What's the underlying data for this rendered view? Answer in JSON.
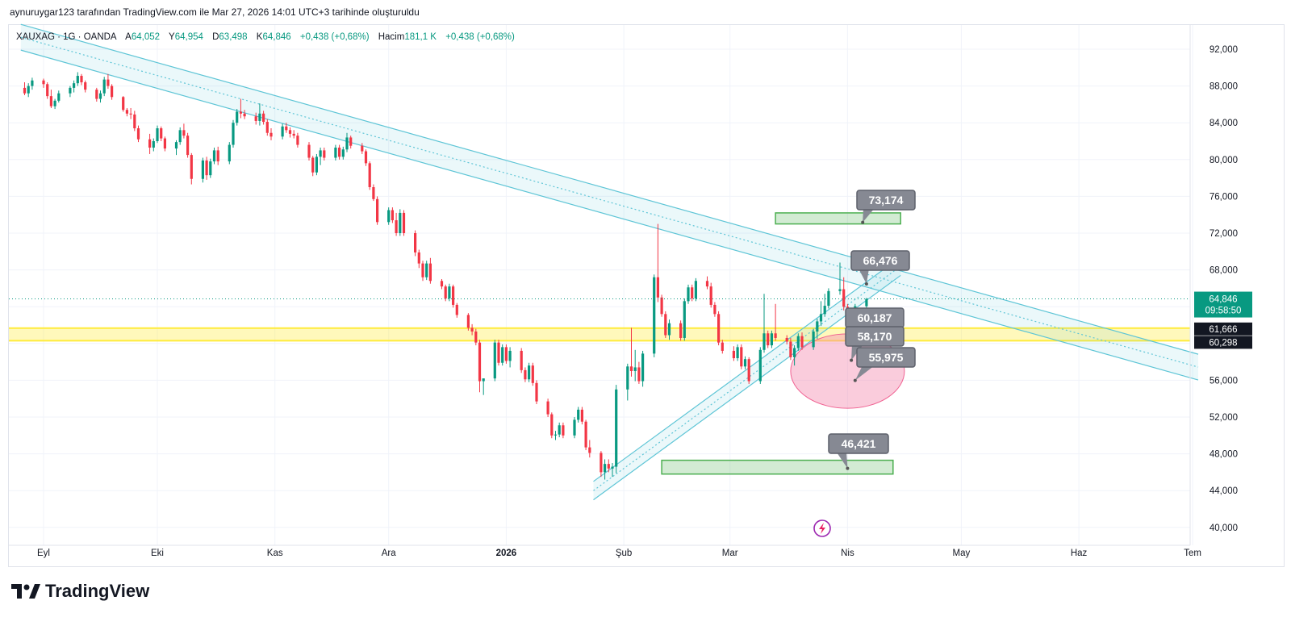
{
  "caption": "aynuruygar123 tarafından TradingView.com ile Mar 27, 2026 14:01 UTC+3 tarihinde oluşturuldu",
  "legend": {
    "symbol": "XAUXAG · 1G · OANDA",
    "open_label": "A",
    "open": "64,052",
    "high_label": "Y",
    "high": "64,954",
    "low_label": "D",
    "low": "63,498",
    "close_label": "K",
    "close": "64,846",
    "change": "+0,438 (+0,68%)",
    "volume_label": "Hacim",
    "volume": "181,1 K",
    "volume_change": "+0,438 (+0,68%)"
  },
  "brand": {
    "name": "TradingView",
    "logo_icon": "tradingview-logo-icon"
  },
  "colors": {
    "up": "#089981",
    "down": "#f23645",
    "channel": "#5ec5d6",
    "zone_green": "#4caf50",
    "zone_yellow": "#ffeb3b",
    "tag": "#868993",
    "ellipse": "#f48fb1"
  },
  "chart_data": {
    "type": "candlestick",
    "ylim": [
      38000,
      94000
    ],
    "y_ticks": [
      "92,000",
      "88,000",
      "84,000",
      "80,000",
      "76,000",
      "72,000",
      "68,000",
      "64,000",
      "60,000",
      "56,000",
      "52,000",
      "48,000",
      "44,000",
      "40,000"
    ],
    "y_tick_values": [
      92000,
      88000,
      84000,
      80000,
      76000,
      72000,
      68000,
      64000,
      60000,
      56000,
      52000,
      48000,
      44000,
      40000
    ],
    "x_ticks": [
      {
        "label": "Eyl",
        "date": "2025-09-01",
        "bold": false
      },
      {
        "label": "Eki",
        "date": "2025-10-01",
        "bold": false
      },
      {
        "label": "Kas",
        "date": "2025-11-01",
        "bold": false
      },
      {
        "label": "Ara",
        "date": "2025-12-01",
        "bold": false
      },
      {
        "label": "2026",
        "date": "2026-01-01",
        "bold": true
      },
      {
        "label": "Şub",
        "date": "2026-02-01",
        "bold": false
      },
      {
        "label": "Mar",
        "date": "2026-03-01",
        "bold": false
      },
      {
        "label": "Nis",
        "date": "2026-04-01",
        "bold": false
      },
      {
        "label": "May",
        "date": "2026-05-01",
        "bold": false
      },
      {
        "label": "Haz",
        "date": "2026-06-01",
        "bold": false
      },
      {
        "label": "Tem",
        "date": "2026-07-01",
        "bold": false
      }
    ],
    "last_price": {
      "value": 64846,
      "label": "64,846",
      "countdown": "09:58:50"
    },
    "zone_labels": [
      {
        "value": 61666,
        "label": "61,666"
      },
      {
        "value": 60298,
        "label": "60,298"
      }
    ],
    "yellow_zone": {
      "top": 61666,
      "bottom": 60298
    },
    "green_zones": [
      {
        "start": "2026-03-13",
        "end": "2026-04-15",
        "top": 74200,
        "bottom": 73000
      },
      {
        "start": "2026-02-11",
        "end": "2026-04-13",
        "top": 47300,
        "bottom": 45800
      }
    ],
    "ellipse": {
      "start": "2026-03-17",
      "end": "2026-04-16",
      "center": 57000,
      "half_height": 900
    },
    "price_tags": [
      {
        "label": "73,174",
        "value": 73174,
        "date": "2026-04-05"
      },
      {
        "label": "66,476",
        "value": 66476,
        "date": "2026-04-06"
      },
      {
        "label": "60,187",
        "value": 60187,
        "date": "2026-04-02"
      },
      {
        "label": "58,170",
        "value": 58170,
        "date": "2026-04-02"
      },
      {
        "label": "55,975",
        "value": 55975,
        "date": "2026-04-03"
      },
      {
        "label": "46,421",
        "value": 46421,
        "date": "2026-04-01"
      }
    ],
    "down_channel": {
      "p1": {
        "date": "2025-08-26",
        "value": 93300
      },
      "p2": {
        "date": "2026-07-01",
        "value": 57600
      },
      "offset": 1400
    },
    "up_channel": {
      "p1": {
        "date": "2026-01-24",
        "value": 44000
      },
      "p2": {
        "date": "2026-04-15",
        "value": 68400
      },
      "offset": 1000
    },
    "candles": [
      [
        "2025-08-27",
        87800,
        88400,
        87000,
        87200
      ],
      [
        "2025-08-28",
        87200,
        88300,
        86800,
        88000
      ],
      [
        "2025-08-29",
        88000,
        88900,
        87600,
        88600
      ],
      [
        "2025-09-01",
        88600,
        88800,
        87800,
        88200
      ],
      [
        "2025-09-02",
        88200,
        88400,
        86600,
        86900
      ],
      [
        "2025-09-03",
        86900,
        87600,
        85600,
        85800
      ],
      [
        "2025-09-04",
        85800,
        86600,
        85500,
        86400
      ],
      [
        "2025-09-05",
        86400,
        87500,
        86200,
        87200
      ],
      [
        "2025-09-08",
        87200,
        88000,
        86800,
        87800
      ],
      [
        "2025-09-09",
        87800,
        88600,
        87300,
        88300
      ],
      [
        "2025-09-10",
        88300,
        89500,
        88000,
        89100
      ],
      [
        "2025-09-11",
        89100,
        89300,
        88100,
        88400
      ],
      [
        "2025-09-12",
        88400,
        88600,
        87300,
        87600
      ],
      [
        "2025-09-15",
        87600,
        87800,
        86300,
        86600
      ],
      [
        "2025-09-16",
        86600,
        87500,
        86200,
        87200
      ],
      [
        "2025-09-17",
        87200,
        89000,
        86900,
        88700
      ],
      [
        "2025-09-18",
        88700,
        89300,
        87700,
        88000
      ],
      [
        "2025-09-19",
        88000,
        88200,
        86500,
        86800
      ],
      [
        "2025-09-22",
        86800,
        86900,
        85200,
        85400
      ],
      [
        "2025-09-23",
        85400,
        85600,
        84700,
        85000
      ],
      [
        "2025-09-24",
        85000,
        85600,
        84400,
        84900
      ],
      [
        "2025-09-25",
        84900,
        85300,
        83100,
        83400
      ],
      [
        "2025-09-26",
        83400,
        83700,
        81900,
        82200
      ],
      [
        "2025-09-29",
        82200,
        82800,
        80600,
        81300
      ],
      [
        "2025-09-30",
        81300,
        82300,
        80900,
        82000
      ],
      [
        "2025-10-01",
        82000,
        83700,
        81800,
        83400
      ],
      [
        "2025-10-02",
        83400,
        83600,
        82000,
        82300
      ],
      [
        "2025-10-03",
        82300,
        82500,
        80900,
        81200
      ],
      [
        "2025-10-06",
        81200,
        82100,
        80500,
        81900
      ],
      [
        "2025-10-07",
        81900,
        83500,
        81600,
        83200
      ],
      [
        "2025-10-08",
        83200,
        83900,
        82300,
        82600
      ],
      [
        "2025-10-09",
        82600,
        82900,
        80200,
        80500
      ],
      [
        "2025-10-10",
        80500,
        80700,
        77300,
        77900
      ],
      [
        "2025-10-13",
        77900,
        80200,
        77500,
        79900
      ],
      [
        "2025-10-14",
        79900,
        80300,
        77800,
        78300
      ],
      [
        "2025-10-15",
        78300,
        80100,
        78000,
        79800
      ],
      [
        "2025-10-16",
        79800,
        81300,
        79500,
        81000
      ],
      [
        "2025-10-17",
        81000,
        81400,
        79400,
        79800
      ],
      [
        "2025-10-20",
        79800,
        81900,
        79500,
        81600
      ],
      [
        "2025-10-21",
        81600,
        84300,
        81300,
        84000
      ],
      [
        "2025-10-22",
        84000,
        85500,
        83700,
        85200
      ],
      [
        "2025-10-23",
        85200,
        86600,
        84500,
        85000
      ],
      [
        "2025-10-24",
        85000,
        85400,
        84400,
        84700
      ],
      [
        "2025-10-27",
        84700,
        85100,
        83800,
        84200
      ],
      [
        "2025-10-28",
        84200,
        86100,
        83700,
        85000
      ],
      [
        "2025-10-29",
        85000,
        85300,
        83800,
        84100
      ],
      [
        "2025-10-30",
        84100,
        84400,
        82600,
        82900
      ],
      [
        "2025-10-31",
        82900,
        83400,
        82100,
        82500
      ],
      [
        "2025-11-03",
        82500,
        83900,
        82200,
        83600
      ],
      [
        "2025-11-04",
        83600,
        84000,
        82900,
        83200
      ],
      [
        "2025-11-05",
        83200,
        83500,
        82400,
        82800
      ],
      [
        "2025-11-06",
        82800,
        83200,
        82300,
        82600
      ],
      [
        "2025-11-07",
        82600,
        82900,
        81300,
        81600
      ],
      [
        "2025-11-10",
        81600,
        81900,
        79900,
        80200
      ],
      [
        "2025-11-11",
        80200,
        80400,
        78200,
        78600
      ],
      [
        "2025-11-12",
        78600,
        80600,
        78300,
        80300
      ],
      [
        "2025-11-13",
        80300,
        81300,
        79400,
        81000
      ],
      [
        "2025-11-14",
        81000,
        81300,
        79900,
        80200
      ],
      [
        "2025-11-17",
        80200,
        81600,
        79900,
        81300
      ],
      [
        "2025-11-18",
        81300,
        81600,
        80000,
        80300
      ],
      [
        "2025-11-19",
        80300,
        81400,
        80000,
        81100
      ],
      [
        "2025-11-20",
        81100,
        82900,
        80800,
        82400
      ],
      [
        "2025-11-21",
        82400,
        82600,
        81200,
        81500
      ],
      [
        "2025-11-24",
        81500,
        81800,
        80600,
        80900
      ],
      [
        "2025-11-25",
        80900,
        81100,
        79300,
        79600
      ],
      [
        "2025-11-26",
        79600,
        79800,
        76700,
        77000
      ],
      [
        "2025-11-27",
        77000,
        77300,
        75500,
        75700
      ],
      [
        "2025-11-28",
        75700,
        76000,
        72900,
        73200
      ],
      [
        "2025-12-01",
        73200,
        74800,
        72900,
        74500
      ],
      [
        "2025-12-02",
        74500,
        74800,
        73100,
        73400
      ],
      [
        "2025-12-03",
        73400,
        74200,
        71700,
        72000
      ],
      [
        "2025-12-04",
        72000,
        74600,
        71700,
        74200
      ],
      [
        "2025-12-05",
        74200,
        74500,
        71700,
        72000
      ],
      [
        "2025-12-08",
        72000,
        72300,
        69500,
        69900
      ],
      [
        "2025-12-09",
        69900,
        70200,
        68200,
        68700
      ],
      [
        "2025-12-10",
        68700,
        69000,
        66800,
        67200
      ],
      [
        "2025-12-11",
        67200,
        69000,
        66900,
        68700
      ],
      [
        "2025-12-12",
        68700,
        69300,
        66500,
        66800
      ],
      [
        "2025-12-15",
        66800,
        67000,
        65900,
        66200
      ],
      [
        "2025-12-16",
        66200,
        66400,
        64600,
        64900
      ],
      [
        "2025-12-17",
        64900,
        66500,
        64600,
        66200
      ],
      [
        "2025-12-18",
        66200,
        66400,
        63900,
        64200
      ],
      [
        "2025-12-19",
        64200,
        64400,
        62800,
        63100
      ],
      [
        "2025-12-22",
        63100,
        63300,
        61400,
        61700
      ],
      [
        "2025-12-23",
        61700,
        62100,
        60900,
        61300
      ],
      [
        "2025-12-24",
        61300,
        61600,
        59800,
        60100
      ],
      [
        "2025-12-25",
        60100,
        60400,
        54700,
        55900
      ],
      [
        "2025-12-26",
        55900,
        56200,
        54400,
        56200
      ],
      [
        "2025-12-29",
        56200,
        60400,
        55900,
        60100
      ],
      [
        "2025-12-30",
        60100,
        60400,
        57600,
        57900
      ],
      [
        "2025-12-31",
        57900,
        59900,
        57600,
        59600
      ],
      [
        "2026-01-01",
        59600,
        59900,
        57800,
        58100
      ],
      [
        "2026-01-02",
        58100,
        59600,
        57400,
        59200
      ],
      [
        "2026-01-05",
        59200,
        59500,
        56800,
        57100
      ],
      [
        "2026-01-06",
        57100,
        57400,
        55800,
        56100
      ],
      [
        "2026-01-07",
        56100,
        57900,
        55800,
        57600
      ],
      [
        "2026-01-08",
        57600,
        57900,
        55400,
        55700
      ],
      [
        "2026-01-09",
        55700,
        56000,
        53400,
        53700
      ],
      [
        "2026-01-12",
        53700,
        54000,
        52000,
        52300
      ],
      [
        "2026-01-13",
        52300,
        52500,
        49700,
        50000
      ],
      [
        "2026-01-14",
        50000,
        50500,
        49500,
        50100
      ],
      [
        "2026-01-15",
        50100,
        51400,
        49800,
        51100
      ],
      [
        "2026-01-16",
        51100,
        51400,
        49700,
        50000
      ],
      [
        "2026-01-19",
        50000,
        52000,
        49700,
        51700
      ],
      [
        "2026-01-20",
        51700,
        53100,
        51400,
        52800
      ],
      [
        "2026-01-21",
        52800,
        53100,
        51200,
        51500
      ],
      [
        "2026-01-22",
        51500,
        51700,
        48400,
        48700
      ],
      [
        "2026-01-23",
        48700,
        49500,
        47600,
        48100
      ],
      [
        "2026-01-26",
        48100,
        48300,
        45500,
        46000
      ],
      [
        "2026-01-27",
        46000,
        47400,
        45200,
        46900
      ],
      [
        "2026-01-28",
        46900,
        47400,
        46000,
        46400
      ],
      [
        "2026-01-29",
        46400,
        47000,
        45500,
        46600
      ],
      [
        "2026-01-30",
        46600,
        55500,
        45900,
        55000
      ],
      [
        "2026-02-02",
        55000,
        57800,
        53800,
        57500
      ],
      [
        "2026-02-03",
        57500,
        61700,
        56400,
        57000
      ],
      [
        "2026-02-04",
        57000,
        59300,
        55900,
        57400
      ],
      [
        "2026-02-05",
        57400,
        58000,
        55600,
        55900
      ],
      [
        "2026-02-06",
        55900,
        59200,
        55300,
        58900
      ],
      [
        "2026-02-09",
        58900,
        67500,
        58500,
        67200
      ],
      [
        "2026-02-10",
        67200,
        73000,
        64500,
        65000
      ],
      [
        "2026-02-11",
        65000,
        65300,
        62900,
        63200
      ],
      [
        "2026-02-12",
        63200,
        63500,
        60600,
        60900
      ],
      [
        "2026-02-13",
        60900,
        62600,
        60400,
        62200
      ],
      [
        "2026-02-16",
        62200,
        62500,
        60300,
        60600
      ],
      [
        "2026-02-17",
        60600,
        64900,
        60300,
        64600
      ],
      [
        "2026-02-18",
        64600,
        66400,
        64300,
        66100
      ],
      [
        "2026-02-19",
        66100,
        66400,
        64600,
        64900
      ],
      [
        "2026-02-20",
        64900,
        67100,
        64600,
        66800
      ],
      [
        "2026-02-23",
        66800,
        67300,
        65900,
        66200
      ],
      [
        "2026-02-24",
        66200,
        66600,
        63900,
        64200
      ],
      [
        "2026-02-25",
        64200,
        64500,
        62900,
        63200
      ],
      [
        "2026-02-26",
        63200,
        63500,
        59800,
        60100
      ],
      [
        "2026-02-27",
        60100,
        60400,
        58900,
        59200
      ],
      [
        "2026-03-02",
        59200,
        59700,
        58100,
        58400
      ],
      [
        "2026-03-03",
        58400,
        59900,
        58100,
        59600
      ],
      [
        "2026-03-04",
        59600,
        59900,
        57200,
        57500
      ],
      [
        "2026-03-05",
        57500,
        58600,
        57200,
        58300
      ],
      [
        "2026-03-06",
        58300,
        58500,
        55600,
        55900
      ],
      [
        "2026-03-09",
        55900,
        59600,
        55600,
        59300
      ],
      [
        "2026-03-10",
        59300,
        65400,
        59000,
        61100
      ],
      [
        "2026-03-11",
        61100,
        61400,
        59500,
        59800
      ],
      [
        "2026-03-12",
        59800,
        61400,
        59500,
        61100
      ],
      [
        "2026-03-13",
        61100,
        64300,
        60300,
        60600
      ],
      [
        "2026-03-16",
        60600,
        60900,
        59900,
        60200
      ],
      [
        "2026-03-17",
        60200,
        60600,
        58200,
        58500
      ],
      [
        "2026-03-18",
        58500,
        59800,
        57600,
        59500
      ],
      [
        "2026-03-19",
        59500,
        61100,
        59200,
        60800
      ],
      [
        "2026-03-20",
        60800,
        61200,
        59300,
        59600
      ],
      [
        "2026-03-23",
        59600,
        61600,
        59300,
        61300
      ],
      [
        "2026-03-24",
        61300,
        62700,
        60500,
        62400
      ],
      [
        "2026-03-25",
        62400,
        64600,
        61900,
        63200
      ],
      [
        "2026-03-26",
        63200,
        65400,
        62900,
        64100
      ],
      [
        "2026-03-27",
        64100,
        66000,
        63800,
        65700
      ],
      [
        "2026-03-30",
        65700,
        68800,
        65300,
        65900
      ],
      [
        "2026-03-31",
        65900,
        67200,
        63600,
        64000
      ],
      [
        "2026-04-01",
        64000,
        64300,
        62300,
        62600
      ],
      [
        "2026-04-02",
        62600,
        63800,
        62300,
        63400
      ],
      [
        "2026-04-03",
        63400,
        64300,
        62800,
        64052
      ],
      [
        "2026-04-06",
        64052,
        64954,
        63498,
        64846
      ]
    ]
  }
}
